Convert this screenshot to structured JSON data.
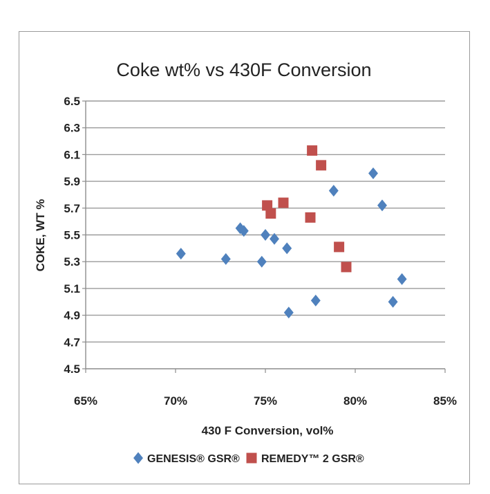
{
  "chart_data": {
    "type": "scatter",
    "title": "Coke wt% vs 430F Conversion",
    "xlabel": "430 F Conversion, vol%",
    "ylabel": "COKE, WT %",
    "xlim": [
      65,
      85
    ],
    "ylim": [
      4.5,
      6.5
    ],
    "x_ticks": [
      "65%",
      "70%",
      "75%",
      "80%",
      "85%"
    ],
    "y_ticks": [
      "4.5",
      "4.7",
      "4.9",
      "5.1",
      "5.3",
      "5.5",
      "5.7",
      "5.9",
      "6.1",
      "6.3",
      "6.5"
    ],
    "grid": "horizontal",
    "legend_position": "bottom",
    "series": [
      {
        "name": "GENESIS® GSR®",
        "marker": "diamond",
        "color": "#4f81bd",
        "points": [
          {
            "x": 70.3,
            "y": 5.36
          },
          {
            "x": 72.8,
            "y": 5.32
          },
          {
            "x": 73.6,
            "y": 5.55
          },
          {
            "x": 73.8,
            "y": 5.53
          },
          {
            "x": 74.8,
            "y": 5.3
          },
          {
            "x": 75.0,
            "y": 5.5
          },
          {
            "x": 75.5,
            "y": 5.47
          },
          {
            "x": 76.2,
            "y": 5.4
          },
          {
            "x": 76.3,
            "y": 4.92
          },
          {
            "x": 77.8,
            "y": 5.01
          },
          {
            "x": 78.8,
            "y": 5.83
          },
          {
            "x": 81.0,
            "y": 5.96
          },
          {
            "x": 81.5,
            "y": 5.72
          },
          {
            "x": 82.1,
            "y": 5.0
          },
          {
            "x": 82.6,
            "y": 5.17
          }
        ]
      },
      {
        "name": "REMEDY™ 2 GSR®",
        "marker": "square",
        "color": "#c0504d",
        "points": [
          {
            "x": 75.1,
            "y": 5.72
          },
          {
            "x": 75.3,
            "y": 5.66
          },
          {
            "x": 76.0,
            "y": 5.74
          },
          {
            "x": 77.5,
            "y": 5.63
          },
          {
            "x": 77.6,
            "y": 6.13
          },
          {
            "x": 78.1,
            "y": 6.02
          },
          {
            "x": 79.1,
            "y": 5.41
          },
          {
            "x": 79.5,
            "y": 5.26
          }
        ]
      }
    ]
  }
}
